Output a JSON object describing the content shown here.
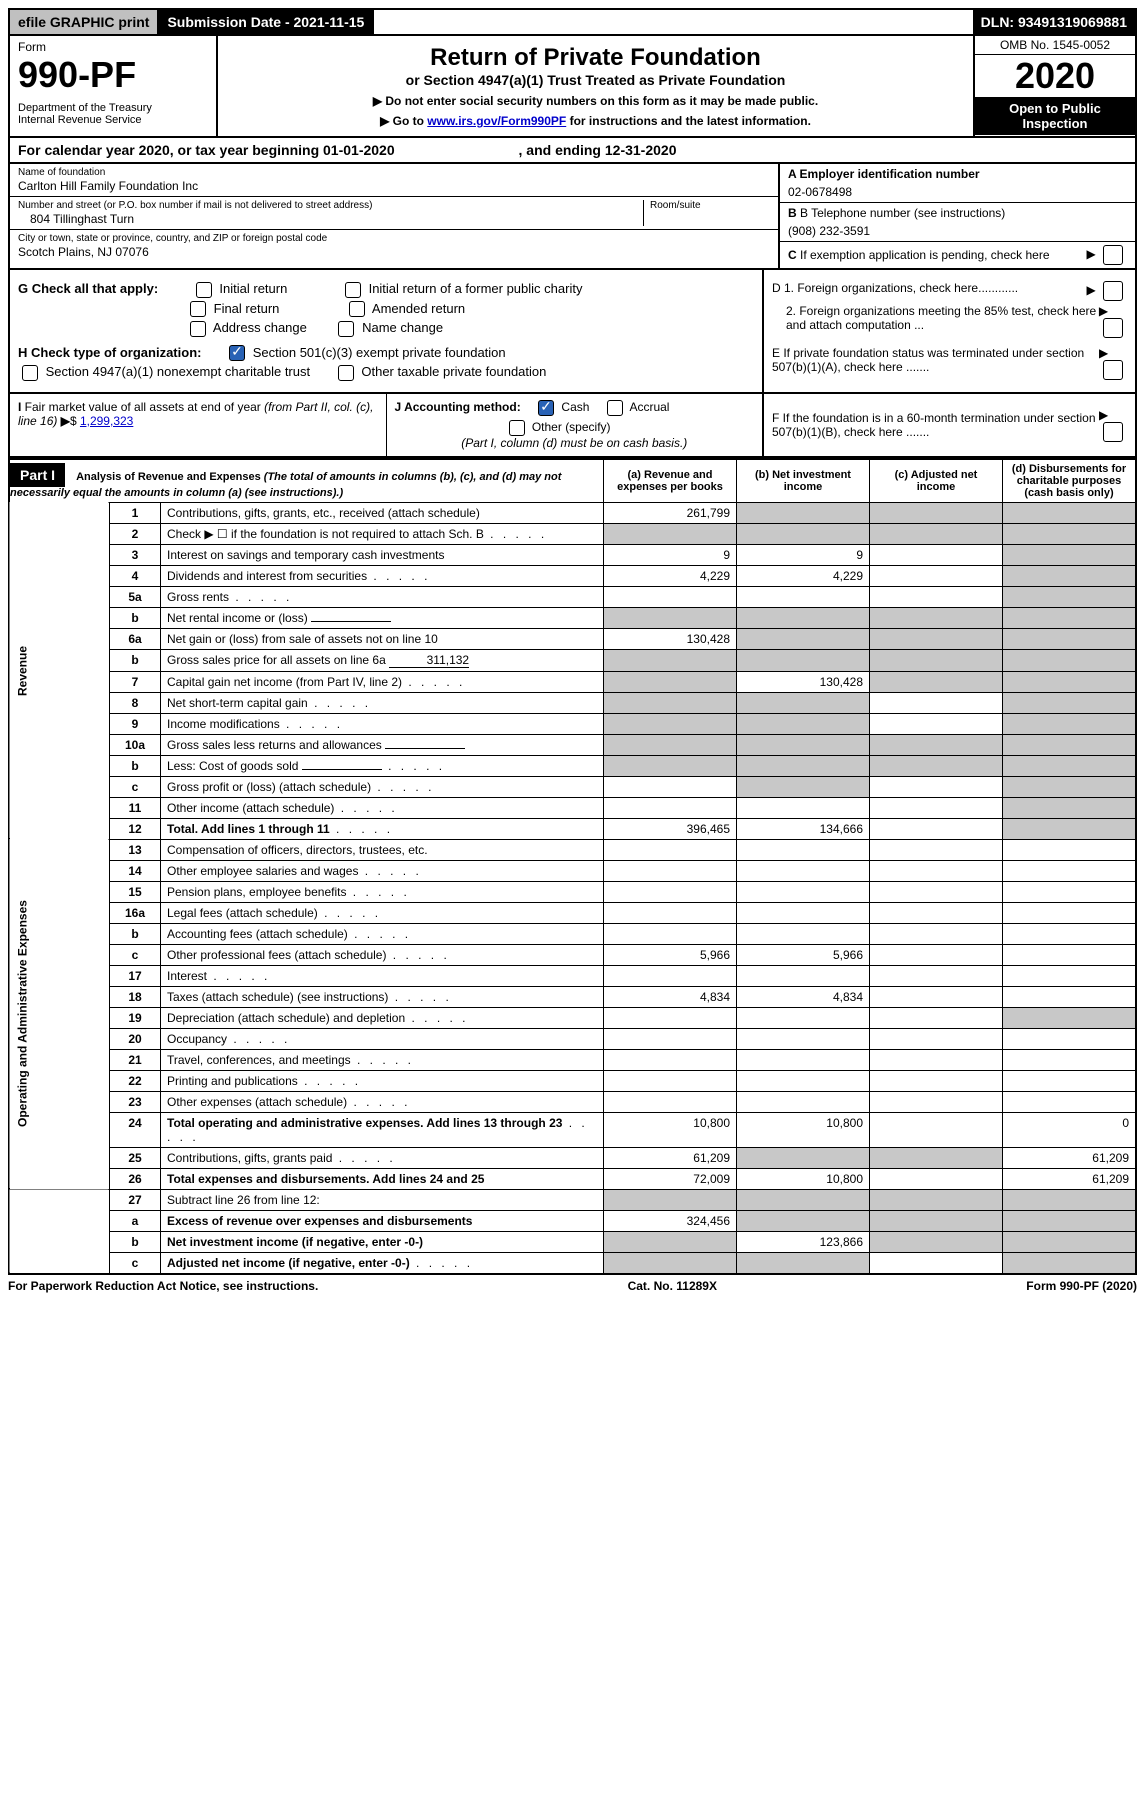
{
  "top": {
    "efile": "efile GRAPHIC print",
    "submission": "Submission Date - 2021-11-15",
    "dln": "DLN: 93491319069881"
  },
  "header": {
    "form_label": "Form",
    "form_number": "990-PF",
    "dept": "Department of the Treasury\nInternal Revenue Service",
    "title": "Return of Private Foundation",
    "subtitle": "or Section 4947(a)(1) Trust Treated as Private Foundation",
    "note1": "▶ Do not enter social security numbers on this form as it may be made public.",
    "note2_pre": "▶ Go to ",
    "note2_link": "www.irs.gov/Form990PF",
    "note2_post": " for instructions and the latest information.",
    "omb": "OMB No. 1545-0052",
    "year": "2020",
    "inspection": "Open to Public Inspection"
  },
  "calyear": {
    "pre": "For calendar year 2020, or tax year beginning ",
    "begin": "01-01-2020",
    "mid": " , and ending ",
    "end": "12-31-2020"
  },
  "info": {
    "name_label": "Name of foundation",
    "name": "Carlton Hill Family Foundation Inc",
    "addr_label": "Number and street (or P.O. box number if mail is not delivered to street address)",
    "addr": "804 Tillinghast Turn",
    "room_label": "Room/suite",
    "city_label": "City or town, state or province, country, and ZIP or foreign postal code",
    "city": "Scotch Plains, NJ  07076",
    "ein_label": "A Employer identification number",
    "ein": "02-0678498",
    "phone_label": "B Telephone number (see instructions)",
    "phone": "(908) 232-3591",
    "c_label": "C If exemption application is pending, check here"
  },
  "checksG": {
    "label": "G Check all that apply:",
    "initial": "Initial return",
    "initial_public": "Initial return of a former public charity",
    "final": "Final return",
    "amended": "Amended return",
    "addr_change": "Address change",
    "name_change": "Name change"
  },
  "checksH": {
    "label": "H Check type of organization:",
    "opt1": "Section 501(c)(3) exempt private foundation",
    "opt2": "Section 4947(a)(1) nonexempt charitable trust",
    "opt3": "Other taxable private foundation"
  },
  "checksD": {
    "d1": "D 1. Foreign organizations, check here............",
    "d2": "2. Foreign organizations meeting the 85% test, check here and attach computation ...",
    "e": "E  If private foundation status was terminated under section 507(b)(1)(A), check here .......",
    "f": "F  If the foundation is in a 60-month termination under section 507(b)(1)(B), check here ......."
  },
  "lineI": {
    "label": "I Fair market value of all assets at end of year (from Part II, col. (c), line 16) ▶$ ",
    "value": "1,299,323"
  },
  "lineJ": {
    "label": "J Accounting method:",
    "cash": "Cash",
    "accrual": "Accrual",
    "other": "Other (specify)",
    "note": "(Part I, column (d) must be on cash basis.)"
  },
  "part1": {
    "label": "Part I",
    "title": "Analysis of Revenue and Expenses",
    "desc": "(The total of amounts in columns (b), (c), and (d) may not necessarily equal the amounts in column (a) (see instructions).)",
    "col_a": "(a) Revenue and expenses per books",
    "col_b": "(b) Net investment income",
    "col_c": "(c) Adjusted net income",
    "col_d": "(d) Disbursements for charitable purposes (cash basis only)"
  },
  "sections": {
    "revenue": "Revenue",
    "expenses": "Operating and Administrative Expenses"
  },
  "rows": [
    {
      "n": "1",
      "desc": "Contributions, gifts, grants, etc., received (attach schedule)",
      "a": "261,799",
      "b": "",
      "c": "",
      "d": "",
      "shade": [
        "b",
        "c",
        "d"
      ]
    },
    {
      "n": "2",
      "desc": "Check ▶ ☐ if the foundation is not required to attach Sch. B",
      "a": "",
      "b": "",
      "c": "",
      "d": "",
      "shade": [
        "a",
        "b",
        "c",
        "d"
      ],
      "dots": true
    },
    {
      "n": "3",
      "desc": "Interest on savings and temporary cash investments",
      "a": "9",
      "b": "9",
      "c": "",
      "d": "",
      "shade": [
        "d"
      ]
    },
    {
      "n": "4",
      "desc": "Dividends and interest from securities",
      "a": "4,229",
      "b": "4,229",
      "c": "",
      "d": "",
      "shade": [
        "d"
      ],
      "dots": true
    },
    {
      "n": "5a",
      "desc": "Gross rents",
      "a": "",
      "b": "",
      "c": "",
      "d": "",
      "shade": [
        "d"
      ],
      "dots": true
    },
    {
      "n": "b",
      "desc": "Net rental income or (loss)",
      "a": "",
      "b": "",
      "c": "",
      "d": "",
      "shade": [
        "a",
        "b",
        "c",
        "d"
      ],
      "inline": true
    },
    {
      "n": "6a",
      "desc": "Net gain or (loss) from sale of assets not on line 10",
      "a": "130,428",
      "b": "",
      "c": "",
      "d": "",
      "shade": [
        "b",
        "c",
        "d"
      ]
    },
    {
      "n": "b",
      "desc": "Gross sales price for all assets on line 6a",
      "a": "",
      "b": "",
      "c": "",
      "d": "",
      "shade": [
        "a",
        "b",
        "c",
        "d"
      ],
      "inline": true,
      "inline_val": "311,132"
    },
    {
      "n": "7",
      "desc": "Capital gain net income (from Part IV, line 2)",
      "a": "",
      "b": "130,428",
      "c": "",
      "d": "",
      "shade": [
        "a",
        "c",
        "d"
      ],
      "dots": true
    },
    {
      "n": "8",
      "desc": "Net short-term capital gain",
      "a": "",
      "b": "",
      "c": "",
      "d": "",
      "shade": [
        "a",
        "b",
        "d"
      ],
      "dots": true
    },
    {
      "n": "9",
      "desc": "Income modifications",
      "a": "",
      "b": "",
      "c": "",
      "d": "",
      "shade": [
        "a",
        "b",
        "d"
      ],
      "dots": true
    },
    {
      "n": "10a",
      "desc": "Gross sales less returns and allowances",
      "a": "",
      "b": "",
      "c": "",
      "d": "",
      "shade": [
        "a",
        "b",
        "c",
        "d"
      ],
      "inline": true
    },
    {
      "n": "b",
      "desc": "Less: Cost of goods sold",
      "a": "",
      "b": "",
      "c": "",
      "d": "",
      "shade": [
        "a",
        "b",
        "c",
        "d"
      ],
      "inline": true,
      "dots": true
    },
    {
      "n": "c",
      "desc": "Gross profit or (loss) (attach schedule)",
      "a": "",
      "b": "",
      "c": "",
      "d": "",
      "shade": [
        "b",
        "d"
      ],
      "dots": true
    },
    {
      "n": "11",
      "desc": "Other income (attach schedule)",
      "a": "",
      "b": "",
      "c": "",
      "d": "",
      "shade": [
        "d"
      ],
      "dots": true
    },
    {
      "n": "12",
      "desc": "Total. Add lines 1 through 11",
      "a": "396,465",
      "b": "134,666",
      "c": "",
      "d": "",
      "shade": [
        "d"
      ],
      "bold": true,
      "dots": true
    }
  ],
  "rows2": [
    {
      "n": "13",
      "desc": "Compensation of officers, directors, trustees, etc.",
      "a": "",
      "b": "",
      "c": "",
      "d": ""
    },
    {
      "n": "14",
      "desc": "Other employee salaries and wages",
      "a": "",
      "b": "",
      "c": "",
      "d": "",
      "dots": true
    },
    {
      "n": "15",
      "desc": "Pension plans, employee benefits",
      "a": "",
      "b": "",
      "c": "",
      "d": "",
      "dots": true
    },
    {
      "n": "16a",
      "desc": "Legal fees (attach schedule)",
      "a": "",
      "b": "",
      "c": "",
      "d": "",
      "dots": true
    },
    {
      "n": "b",
      "desc": "Accounting fees (attach schedule)",
      "a": "",
      "b": "",
      "c": "",
      "d": "",
      "dots": true
    },
    {
      "n": "c",
      "desc": "Other professional fees (attach schedule)",
      "a": "5,966",
      "b": "5,966",
      "c": "",
      "d": "",
      "dots": true
    },
    {
      "n": "17",
      "desc": "Interest",
      "a": "",
      "b": "",
      "c": "",
      "d": "",
      "dots": true
    },
    {
      "n": "18",
      "desc": "Taxes (attach schedule) (see instructions)",
      "a": "4,834",
      "b": "4,834",
      "c": "",
      "d": "",
      "dots": true
    },
    {
      "n": "19",
      "desc": "Depreciation (attach schedule) and depletion",
      "a": "",
      "b": "",
      "c": "",
      "d": "",
      "shade": [
        "d"
      ],
      "dots": true
    },
    {
      "n": "20",
      "desc": "Occupancy",
      "a": "",
      "b": "",
      "c": "",
      "d": "",
      "dots": true
    },
    {
      "n": "21",
      "desc": "Travel, conferences, and meetings",
      "a": "",
      "b": "",
      "c": "",
      "d": "",
      "dots": true
    },
    {
      "n": "22",
      "desc": "Printing and publications",
      "a": "",
      "b": "",
      "c": "",
      "d": "",
      "dots": true
    },
    {
      "n": "23",
      "desc": "Other expenses (attach schedule)",
      "a": "",
      "b": "",
      "c": "",
      "d": "",
      "dots": true
    },
    {
      "n": "24",
      "desc": "Total operating and administrative expenses. Add lines 13 through 23",
      "a": "10,800",
      "b": "10,800",
      "c": "",
      "d": "0",
      "bold": true,
      "dots": true
    },
    {
      "n": "25",
      "desc": "Contributions, gifts, grants paid",
      "a": "61,209",
      "b": "",
      "c": "",
      "d": "61,209",
      "shade": [
        "b",
        "c"
      ],
      "dots": true
    },
    {
      "n": "26",
      "desc": "Total expenses and disbursements. Add lines 24 and 25",
      "a": "72,009",
      "b": "10,800",
      "c": "",
      "d": "61,209",
      "bold": true
    }
  ],
  "rows3": [
    {
      "n": "27",
      "desc": "Subtract line 26 from line 12:",
      "a": "",
      "b": "",
      "c": "",
      "d": "",
      "shade": [
        "a",
        "b",
        "c",
        "d"
      ]
    },
    {
      "n": "a",
      "desc": "Excess of revenue over expenses and disbursements",
      "a": "324,456",
      "b": "",
      "c": "",
      "d": "",
      "shade": [
        "b",
        "c",
        "d"
      ],
      "bold": true
    },
    {
      "n": "b",
      "desc": "Net investment income (if negative, enter -0-)",
      "a": "",
      "b": "123,866",
      "c": "",
      "d": "",
      "shade": [
        "a",
        "c",
        "d"
      ],
      "bold": true
    },
    {
      "n": "c",
      "desc": "Adjusted net income (if negative, enter -0-)",
      "a": "",
      "b": "",
      "c": "",
      "d": "",
      "shade": [
        "a",
        "b",
        "d"
      ],
      "bold": true,
      "dots": true
    }
  ],
  "footer": {
    "left": "For Paperwork Reduction Act Notice, see instructions.",
    "mid": "Cat. No. 11289X",
    "right": "Form 990-PF (2020)"
  }
}
